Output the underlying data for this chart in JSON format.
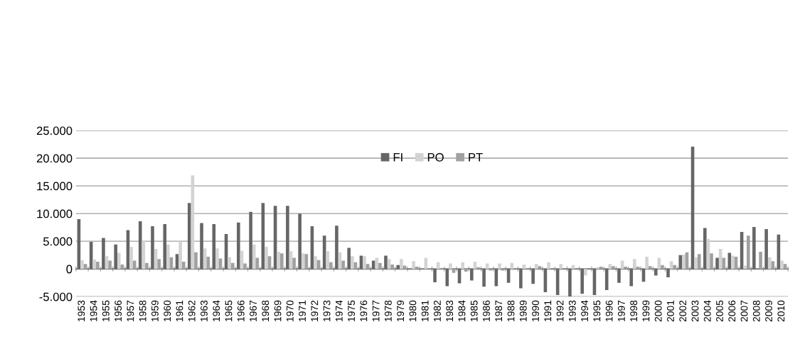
{
  "chart_data": {
    "type": "bar",
    "categories": [
      "1953",
      "1954",
      "1955",
      "1956",
      "1957",
      "1958",
      "1959",
      "1960",
      "1961",
      "1962",
      "1963",
      "1964",
      "1965",
      "1966",
      "1967",
      "1968",
      "1969",
      "1970",
      "1971",
      "1972",
      "1973",
      "1974",
      "1975",
      "1976",
      "1977",
      "1978",
      "1979",
      "1980",
      "1981",
      "1982",
      "1983",
      "1984",
      "1985",
      "1986",
      "1987",
      "1988",
      "1989",
      "1990",
      "1991",
      "1992",
      "1993",
      "1994",
      "1995",
      "1996",
      "1997",
      "1998",
      "1999",
      "2000",
      "2001",
      "2002",
      "2003",
      "2004",
      "2005",
      "2006",
      "2007",
      "2008",
      "2009",
      "2010"
    ],
    "series": [
      {
        "name": "FI",
        "color": "#666666",
        "values": [
          9000,
          4900,
          5600,
          4400,
          7000,
          8600,
          7700,
          8100,
          2700,
          11900,
          8300,
          8100,
          6300,
          8400,
          10300,
          11900,
          11400,
          11400,
          10000,
          7700,
          6000,
          7800,
          3800,
          2400,
          1500,
          2400,
          700,
          -100,
          null,
          -2400,
          -3100,
          -2600,
          -2100,
          -3200,
          -3100,
          -2500,
          -3500,
          -2700,
          -4200,
          -4700,
          -5000,
          -4500,
          -4700,
          -3800,
          -2500,
          -3100,
          -2300,
          -1200,
          -1500,
          2500,
          22100,
          7400,
          2000,
          2900,
          6700,
          7600,
          7200,
          6200
        ]
      },
      {
        "name": "PO",
        "color": "#d3d3d3",
        "values": [
          1600,
          1700,
          2300,
          2900,
          4000,
          5100,
          3600,
          4400,
          5000,
          16900,
          3700,
          3700,
          2100,
          3300,
          4400,
          4000,
          3100,
          3200,
          2800,
          2300,
          3200,
          3000,
          2300,
          2300,
          2000,
          1800,
          1800,
          1400,
          2000,
          1200,
          1000,
          1200,
          1300,
          1000,
          1000,
          1100,
          800,
          900,
          1200,
          900,
          700,
          -1200,
          300,
          900,
          1500,
          1800,
          2200,
          2000,
          1400,
          2600,
          2100,
          5400,
          3600,
          2400,
          600,
          null,
          2100,
          1500
        ]
      },
      {
        "name": "PT",
        "color": "#a0a0a0",
        "values": [
          900,
          1300,
          1500,
          800,
          1500,
          1100,
          1800,
          2100,
          1300,
          3000,
          2200,
          1900,
          1100,
          1000,
          2000,
          2300,
          2800,
          2000,
          2700,
          1600,
          1200,
          1500,
          1200,
          900,
          1100,
          800,
          600,
          400,
          100,
          -100,
          -700,
          -500,
          300,
          -300,
          -300,
          0,
          100,
          500,
          0,
          0,
          0,
          0,
          400,
          500,
          400,
          400,
          500,
          700,
          700,
          3000,
          2700,
          2800,
          2000,
          2200,
          6000,
          3100,
          1400,
          900
        ]
      }
    ],
    "ylim": [
      -5000,
      25000
    ],
    "yticks": [
      {
        "value": -5000,
        "label": "-5.000"
      },
      0,
      {
        "value": 5000,
        "label": "5.000"
      },
      {
        "value": 10000,
        "label": "10.000"
      },
      {
        "value": 15000,
        "label": "15.000"
      },
      {
        "value": 20000,
        "label": "20.000"
      },
      {
        "value": 25000,
        "label": "25.000"
      }
    ],
    "grid": "y",
    "legend": "top"
  }
}
